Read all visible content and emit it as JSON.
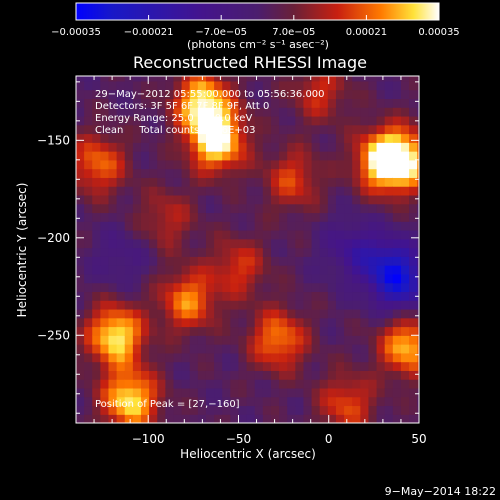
{
  "chart_data": {
    "type": "heatmap",
    "title": "Reconstructed RHESSI Image",
    "xlabel": "Heliocentric X (arcsec)",
    "ylabel": "Heliocentric Y (arcsec)",
    "xlim": [
      -140,
      50
    ],
    "ylim": [
      -295,
      -117
    ],
    "x_ticks": [
      -100,
      -50,
      0,
      50
    ],
    "x_tick_labels": [
      "−100",
      "−50",
      "0",
      "50"
    ],
    "y_ticks": [
      -150,
      -200,
      -250
    ],
    "y_tick_labels": [
      "−150",
      "−200",
      "−250"
    ],
    "colorbar": {
      "range": [
        -0.00035,
        0.00035
      ],
      "ticks": [
        -0.00035,
        -0.00021,
        -7e-05,
        7e-05,
        0.00021,
        0.00035
      ],
      "tick_labels": [
        "−0.00035",
        "−0.00021",
        "−7.0e−05",
        "7.0e−05",
        "0.00021",
        "0.00035"
      ],
      "unit_label": "(photons cm⁻² s⁻¹ asec⁻²)"
    },
    "annotations": [
      "29−May−2012 05:55:00.000 to 05:56:36.000",
      "Detectors: 3F 5F 6F 7F 8F 9F, Att 0",
      "Energy Range: 25.0 − 50.0 keV",
      "Clean     Total counts: 1.76E+03"
    ],
    "peak_text": "Position of Peak = [27,−160]",
    "peak": [
      27,
      -160
    ],
    "grid": false,
    "hot_spots": [
      {
        "x": -62,
        "y": -150,
        "value": 0.00034
      },
      {
        "x": -70,
        "y": -130,
        "value": 0.00029
      },
      {
        "x": -118,
        "y": -250,
        "value": 0.00031
      },
      {
        "x": -110,
        "y": -283,
        "value": 0.0003
      },
      {
        "x": -78,
        "y": -232,
        "value": 0.00022
      },
      {
        "x": -28,
        "y": -252,
        "value": 0.00022
      },
      {
        "x": 30,
        "y": -160,
        "value": 0.00029
      },
      {
        "x": 42,
        "y": -160,
        "value": 0.00026
      },
      {
        "x": 44,
        "y": -255,
        "value": 0.00027
      },
      {
        "x": -128,
        "y": -162,
        "value": 0.0002
      },
      {
        "x": -20,
        "y": -170,
        "value": 0.00016
      },
      {
        "x": -50,
        "y": -215,
        "value": 0.00015
      },
      {
        "x": 10,
        "y": -285,
        "value": 0.00017
      },
      {
        "x": -90,
        "y": -190,
        "value": 0.00012
      },
      {
        "x": -5,
        "y": -125,
        "value": 0.00014
      }
    ],
    "cold_spots": [
      {
        "x": 33,
        "y": -215,
        "value": -0.00022
      },
      {
        "x": 42,
        "y": -225,
        "value": -0.00018
      },
      {
        "x": 12,
        "y": -205,
        "value": -0.00012
      },
      {
        "x": -115,
        "y": -210,
        "value": -8e-05
      }
    ]
  },
  "timestamp": "9−May−2014 18:22"
}
